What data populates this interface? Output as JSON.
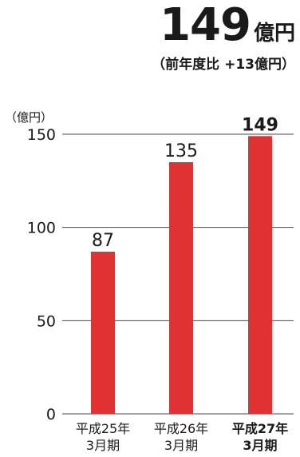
{
  "headline": {
    "value": "149",
    "unit": "億円",
    "note": "（前年度比 +13億円）"
  },
  "colors": {
    "bar": "#e03232",
    "grid": "#4a4a4a",
    "text": "#1a1a1a"
  },
  "chart_data": {
    "type": "bar",
    "unit_label": "（億円）",
    "categories": [
      {
        "line1": "平成25年",
        "line2": "3月期",
        "bold": false
      },
      {
        "line1": "平成26年",
        "line2": "3月期",
        "bold": false
      },
      {
        "line1": "平成27年",
        "line2": "3月期",
        "bold": true
      }
    ],
    "values": [
      87,
      135,
      149
    ],
    "value_labels": [
      "87",
      "135",
      "149"
    ],
    "ylim": [
      0,
      150
    ],
    "yticks": [
      0,
      50,
      100,
      150
    ],
    "grid": true,
    "legend": "none"
  }
}
